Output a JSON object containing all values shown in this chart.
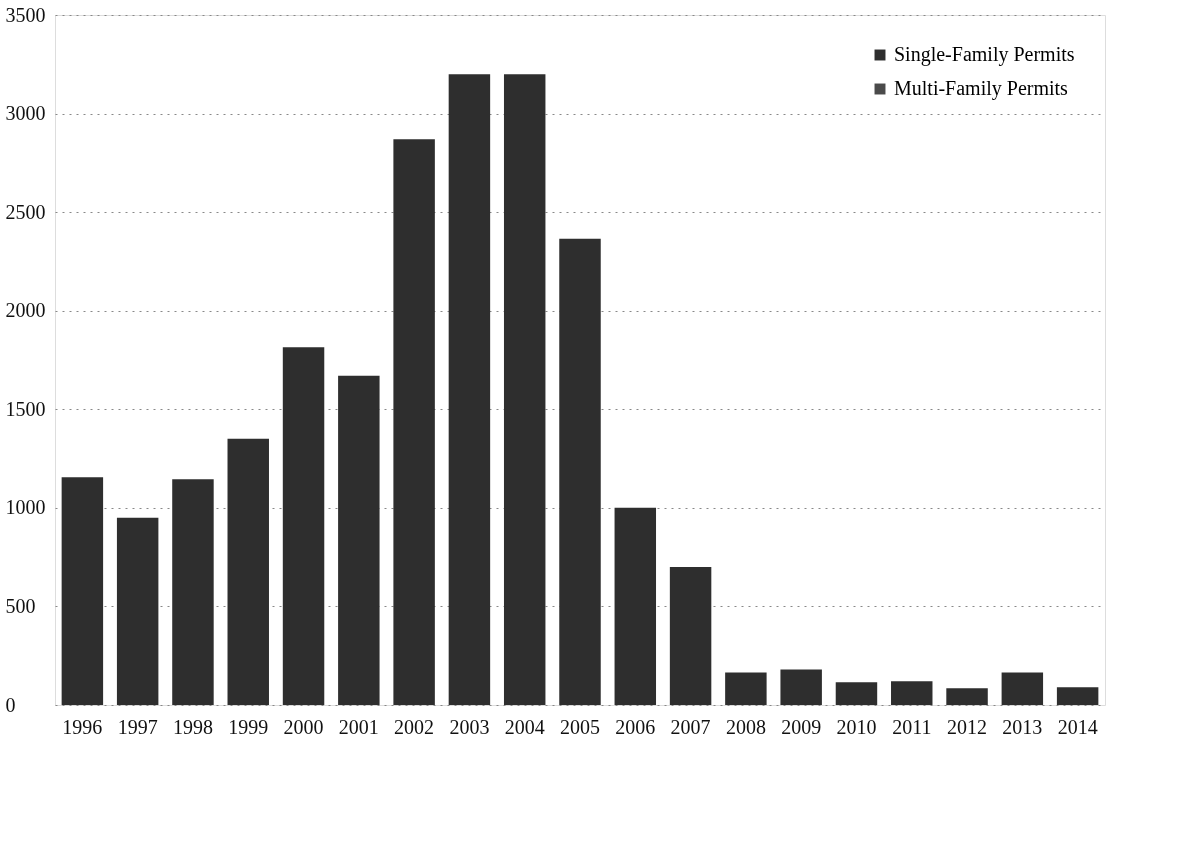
{
  "chart_data": {
    "type": "bar",
    "categories": [
      "1996",
      "1997",
      "1998",
      "1999",
      "2000",
      "2001",
      "2002",
      "2003",
      "2004",
      "2005",
      "2006",
      "2007",
      "2008",
      "2009",
      "2010",
      "2011",
      "2012",
      "2013",
      "2014"
    ],
    "series": [
      {
        "name": "Single-Family Permits",
        "color": "#2e2e2e",
        "values": [
          1155,
          950,
          1145,
          1350,
          1815,
          1670,
          2870,
          3200,
          3200,
          2365,
          1000,
          700,
          165,
          180,
          115,
          120,
          85,
          165,
          90
        ]
      },
      {
        "name": "Multi-Family Permits",
        "color": "#4a4a4a",
        "values": [
          null,
          null,
          null,
          null,
          null,
          null,
          null,
          null,
          null,
          null,
          null,
          null,
          null,
          null,
          null,
          null,
          null,
          null,
          null
        ]
      }
    ],
    "ylim": [
      0,
      3500
    ],
    "yticks": [
      0,
      500,
      1000,
      1500,
      2000,
      2500,
      3000,
      3500
    ],
    "grid": "y",
    "legend": "top right"
  }
}
